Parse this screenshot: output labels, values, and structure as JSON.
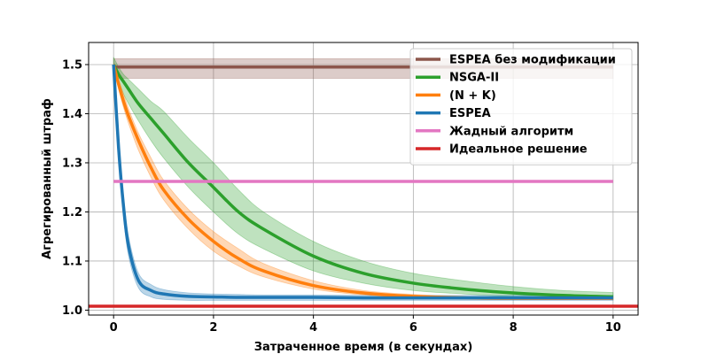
{
  "chart_data": {
    "type": "line",
    "title": "",
    "xlabel": "Затраченное время (в секундах)",
    "ylabel": "Агрегированный штраф",
    "xlim": [
      -0.5,
      10.5
    ],
    "ylim": [
      0.99,
      1.545
    ],
    "xticks": [
      0,
      2,
      4,
      6,
      8,
      10
    ],
    "yticks": [
      1.0,
      1.1,
      1.2,
      1.3,
      1.4,
      1.5
    ],
    "xtick_labels": [
      "0",
      "2",
      "4",
      "6",
      "8",
      "10"
    ],
    "ytick_labels": [
      "1.0",
      "1.1",
      "1.2",
      "1.3",
      "1.4",
      "1.5"
    ],
    "grid": true,
    "legend_position": "top-right",
    "x": [
      0,
      0.1,
      0.2,
      0.3,
      0.5,
      0.75,
      1,
      1.5,
      2,
      2.5,
      3,
      4,
      5,
      6,
      7,
      8,
      9,
      10
    ],
    "series": [
      {
        "name": "ESPEA без модификации",
        "color": "#8c564b",
        "values": [
          1.495,
          1.495,
          1.495,
          1.495,
          1.495,
          1.495,
          1.495,
          1.495,
          1.495,
          1.495,
          1.495,
          1.495,
          1.495,
          1.495,
          1.495,
          1.495,
          1.495,
          1.495
        ],
        "lower": [
          1.472,
          1.472,
          1.472,
          1.472,
          1.472,
          1.472,
          1.472,
          1.472,
          1.472,
          1.472,
          1.472,
          1.472,
          1.472,
          1.472,
          1.472,
          1.472,
          1.472,
          1.472
        ],
        "upper": [
          1.512,
          1.512,
          1.512,
          1.512,
          1.512,
          1.512,
          1.512,
          1.512,
          1.512,
          1.512,
          1.512,
          1.512,
          1.512,
          1.512,
          1.512,
          1.512,
          1.512,
          1.512
        ]
      },
      {
        "name": "NSGA-II",
        "color": "#2ca02c",
        "values": [
          1.5,
          1.48,
          1.465,
          1.45,
          1.42,
          1.39,
          1.36,
          1.3,
          1.25,
          1.2,
          1.165,
          1.11,
          1.075,
          1.055,
          1.043,
          1.035,
          1.03,
          1.027
        ],
        "lower": [
          1.5,
          1.465,
          1.44,
          1.42,
          1.385,
          1.345,
          1.31,
          1.25,
          1.2,
          1.155,
          1.125,
          1.08,
          1.055,
          1.04,
          1.033,
          1.027,
          1.024,
          1.022
        ],
        "upper": [
          1.515,
          1.495,
          1.48,
          1.47,
          1.45,
          1.425,
          1.405,
          1.35,
          1.3,
          1.245,
          1.2,
          1.14,
          1.1,
          1.075,
          1.06,
          1.048,
          1.04,
          1.036
        ]
      },
      {
        "name": "(N + K)",
        "color": "#ff7f0e",
        "values": [
          1.5,
          1.46,
          1.425,
          1.395,
          1.345,
          1.29,
          1.245,
          1.185,
          1.14,
          1.105,
          1.08,
          1.05,
          1.035,
          1.028,
          1.025,
          1.024,
          1.024,
          1.024
        ],
        "lower": [
          1.5,
          1.45,
          1.412,
          1.38,
          1.325,
          1.27,
          1.225,
          1.165,
          1.12,
          1.09,
          1.068,
          1.043,
          1.031,
          1.026,
          1.023,
          1.022,
          1.022,
          1.022
        ],
        "upper": [
          1.5,
          1.47,
          1.44,
          1.41,
          1.36,
          1.31,
          1.265,
          1.205,
          1.16,
          1.125,
          1.095,
          1.06,
          1.04,
          1.032,
          1.028,
          1.027,
          1.026,
          1.026
        ]
      },
      {
        "name": "ESPEA",
        "color": "#1f77b4",
        "values": [
          1.5,
          1.33,
          1.21,
          1.13,
          1.06,
          1.04,
          1.033,
          1.028,
          1.027,
          1.026,
          1.026,
          1.026,
          1.025,
          1.025,
          1.025,
          1.025,
          1.025,
          1.025
        ],
        "lower": [
          1.5,
          1.315,
          1.19,
          1.11,
          1.045,
          1.027,
          1.022,
          1.02,
          1.02,
          1.02,
          1.02,
          1.02,
          1.02,
          1.02,
          1.02,
          1.02,
          1.02,
          1.02
        ],
        "upper": [
          1.5,
          1.345,
          1.23,
          1.15,
          1.075,
          1.052,
          1.042,
          1.035,
          1.033,
          1.032,
          1.031,
          1.031,
          1.03,
          1.03,
          1.03,
          1.03,
          1.03,
          1.03
        ]
      },
      {
        "name": "Жадный алгоритм",
        "color": "#e377c2",
        "values": [
          1.262,
          1.262,
          1.262,
          1.262,
          1.262,
          1.262,
          1.262,
          1.262,
          1.262,
          1.262,
          1.262,
          1.262,
          1.262,
          1.262,
          1.262,
          1.262,
          1.262,
          1.262
        ]
      },
      {
        "name": "Идеальное решение",
        "color": "#d62728",
        "constant": 1.008
      }
    ]
  }
}
